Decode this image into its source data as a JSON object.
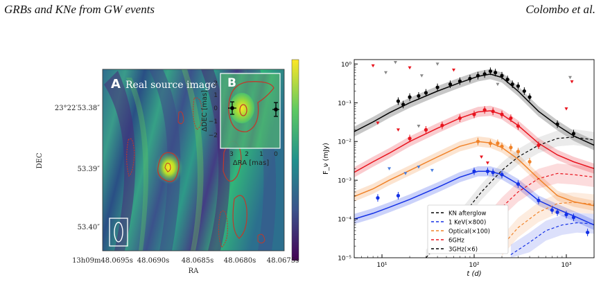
{
  "header": {
    "left": "GRBs and KNe from GW events",
    "right": "Colombo et al."
  },
  "left_panel": {
    "label_a": "A",
    "title_a": "Real source image",
    "label_b": "B",
    "xlabel": "RA",
    "ylabel": "DEC",
    "yticks": [
      "23°22′53.38″",
      "53.39″",
      "53.40″"
    ],
    "xticks": [
      "13h09m48.0695s",
      "48.0690s",
      "48.0685s",
      "48.0680s",
      "48.0675s"
    ],
    "inset_xlabel": "ΔRA [mas]",
    "inset_ylabel": "ΔDEC [mas]",
    "inset_xticks": [
      "3",
      "2",
      "1",
      "0"
    ],
    "inset_yticks": [
      "2",
      "1",
      "0",
      "−1",
      "−2"
    ]
  },
  "chart_data": {
    "type": "line",
    "x_scale": "log",
    "y_scale": "log",
    "xlabel": "t (d)",
    "ylabel": "F_ν (mJy)",
    "xlim": [
      5,
      2000
    ],
    "ylim": [
      1e-05,
      1.3
    ],
    "xtick_labels": [
      "10¹",
      "10²",
      "10³"
    ],
    "ytick_labels": [
      "10⁰",
      "10⁻¹",
      "10⁻²",
      "10⁻³",
      "10⁻⁴",
      "10⁻⁵"
    ],
    "legend_position": "bottom-center",
    "series": [
      {
        "name": "3GHz(×6)",
        "color": "#000000",
        "x": [
          5,
          8,
          12,
          20,
          40,
          70,
          110,
          150,
          200,
          300,
          500,
          800,
          1200,
          2000
        ],
        "y": [
          0.018,
          0.032,
          0.055,
          0.1,
          0.2,
          0.33,
          0.48,
          0.55,
          0.45,
          0.2,
          0.06,
          0.026,
          0.014,
          0.008
        ],
        "points": {
          "x": [
            15,
            17,
            20,
            25,
            30,
            40,
            55,
            70,
            90,
            110,
            130,
            150,
            170,
            200,
            230,
            260,
            300,
            350,
            400,
            800,
            1200
          ],
          "y": [
            0.11,
            0.09,
            0.14,
            0.15,
            0.18,
            0.25,
            0.3,
            0.36,
            0.42,
            0.5,
            0.55,
            0.65,
            0.6,
            0.5,
            0.4,
            0.3,
            0.27,
            0.2,
            0.14,
            0.028,
            0.016
          ]
        }
      },
      {
        "name": "6GHz",
        "color": "#e8141e",
        "x": [
          5,
          8,
          12,
          20,
          40,
          70,
          110,
          150,
          200,
          300,
          500,
          800,
          1200,
          2000
        ],
        "y": [
          0.0016,
          0.003,
          0.005,
          0.01,
          0.022,
          0.04,
          0.058,
          0.062,
          0.05,
          0.026,
          0.009,
          0.0045,
          0.003,
          0.002
        ],
        "points": {
          "x": [
            20,
            30,
            45,
            70,
            100,
            130,
            160,
            200,
            250,
            300,
            500
          ],
          "y": [
            0.012,
            0.02,
            0.026,
            0.04,
            0.05,
            0.065,
            0.06,
            0.05,
            0.04,
            0.025,
            0.008
          ]
        }
      },
      {
        "name": "Optical(×100)",
        "color": "#f08228",
        "x": [
          5,
          8,
          12,
          20,
          40,
          70,
          110,
          150,
          200,
          300,
          500,
          800,
          1200,
          2000
        ],
        "y": [
          0.00038,
          0.0006,
          0.001,
          0.0018,
          0.004,
          0.0075,
          0.01,
          0.0092,
          0.007,
          0.0035,
          0.0011,
          0.0004,
          0.00028,
          0.00022
        ],
        "points": {
          "x": [
            110,
            150,
            180,
            200,
            250,
            300,
            400
          ],
          "y": [
            0.01,
            0.009,
            0.009,
            0.0075,
            0.007,
            0.0055,
            0.003
          ]
        }
      },
      {
        "name": "1 KeV(×800)",
        "color": "#1431e6",
        "x": [
          5,
          8,
          12,
          20,
          40,
          70,
          110,
          150,
          200,
          300,
          500,
          800,
          1200,
          2000
        ],
        "y": [
          0.0001,
          0.00014,
          0.0002,
          0.00032,
          0.00065,
          0.0012,
          0.0017,
          0.0017,
          0.0014,
          0.0008,
          0.0003,
          0.00018,
          0.00012,
          7e-05
        ],
        "points": {
          "x": [
            9,
            15,
            100,
            140,
            160,
            200,
            300,
            500,
            700,
            800,
            1000,
            1200,
            1700
          ],
          "y": [
            0.00035,
            0.0004,
            0.0017,
            0.0017,
            0.0016,
            0.0014,
            0.0008,
            0.0003,
            0.00017,
            0.00015,
            0.00013,
            0.00011,
            4.5e-05
          ]
        }
      },
      {
        "name": "KN afterglow",
        "color": "#000000",
        "dashed": true,
        "x": [
          30,
          50,
          80,
          120,
          200,
          300,
          500,
          800,
          1200,
          2000
        ],
        "y": [
          1e-05,
          4e-05,
          0.00015,
          0.0005,
          0.0018,
          0.004,
          0.008,
          0.012,
          0.013,
          0.011
        ]
      }
    ],
    "kn_components": [
      {
        "color": "#e8141e",
        "x": [
          100,
          200,
          300,
          500,
          800,
          1200,
          2000
        ],
        "y": [
          3e-05,
          0.0002,
          0.0005,
          0.0011,
          0.0015,
          0.0014,
          0.0012
        ]
      },
      {
        "color": "#f08228",
        "x": [
          200,
          300,
          500,
          800,
          1200,
          2000
        ],
        "y": [
          2e-05,
          6e-05,
          0.00015,
          0.00025,
          0.00027,
          0.00024
        ]
      },
      {
        "color": "#1431e6",
        "x": [
          250,
          400,
          600,
          900,
          1300,
          2000
        ],
        "y": [
          1.2e-05,
          2.5e-05,
          5e-05,
          7e-05,
          8e-05,
          7.5e-05
        ]
      }
    ]
  }
}
